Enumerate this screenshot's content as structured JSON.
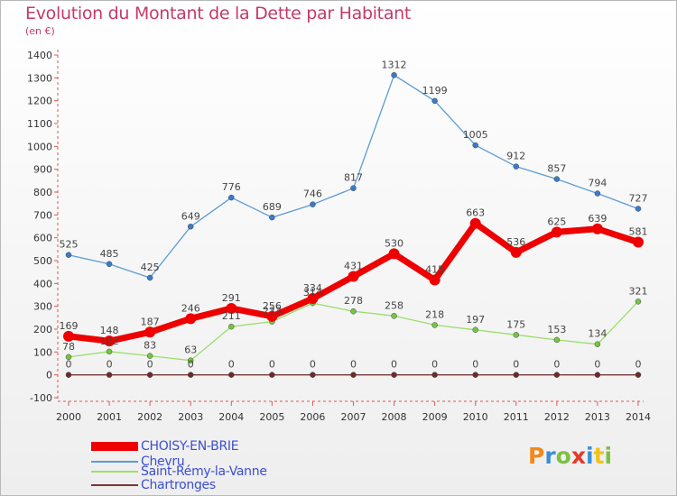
{
  "header": {
    "title": "Evolution du Montant de la Dette par Habitant",
    "subtitle": "(en €)"
  },
  "logo": {
    "text": "Proxiti",
    "colors": [
      "#f08a1c",
      "#3a8fd6",
      "#7cc142",
      "#e23a2a",
      "#3a8fd6",
      "#f0c21c",
      "#7cc142"
    ]
  },
  "chart_data": {
    "type": "line",
    "x": [
      "2000",
      "2001",
      "2002",
      "2003",
      "2004",
      "2005",
      "2006",
      "2007",
      "2008",
      "2009",
      "2010",
      "2011",
      "2012",
      "2013",
      "2014"
    ],
    "ylim": [
      -100,
      1400
    ],
    "yticks": [
      -100,
      0,
      100,
      200,
      300,
      400,
      500,
      600,
      700,
      800,
      900,
      1000,
      1100,
      1200,
      1300,
      1400
    ],
    "grid": false,
    "legend_position": "bottom-left",
    "series": [
      {
        "name": "Chevru",
        "color": "#5b9bd5",
        "values": [
          525,
          485,
          425,
          649,
          776,
          689,
          746,
          817,
          1312,
          1199,
          1005,
          912,
          857,
          794,
          727
        ],
        "labels": [
          "525",
          "485",
          "425",
          "649",
          "776",
          "689",
          "746",
          "817",
          "1312",
          "1199",
          "1005",
          "912",
          "857",
          "794",
          "727"
        ]
      },
      {
        "name": "Saint-Rémy-la-Vanne",
        "color": "#9bde6e",
        "values": [
          78,
          102,
          83,
          63,
          211,
          233,
          314,
          278,
          258,
          218,
          197,
          175,
          153,
          134,
          321
        ],
        "labels": [
          "78",
          "102",
          "83",
          "63",
          "211",
          "233",
          "314",
          "278",
          "258",
          "218",
          "197",
          "175",
          "153",
          "134",
          "321"
        ]
      },
      {
        "name": "Chartronges",
        "color": "#7a3535",
        "values": [
          0,
          0,
          0,
          0,
          0,
          0,
          0,
          0,
          0,
          0,
          0,
          0,
          0,
          0,
          0
        ],
        "labels": [
          "0",
          "0",
          "0",
          "0",
          "0",
          "0",
          "0",
          "0",
          "0",
          "0",
          "0",
          "0",
          "0",
          "0",
          "0"
        ]
      },
      {
        "name": "CHOISY-EN-BRIE",
        "color": "#ee0000",
        "values": [
          169,
          148,
          187,
          246,
          291,
          256,
          334,
          431,
          530,
          415,
          663,
          536,
          625,
          639,
          581
        ],
        "labels": [
          "169",
          "148",
          "187",
          "246",
          "291",
          "256",
          "334",
          "431",
          "530",
          "415",
          "663",
          "536",
          "625",
          "639",
          "581"
        ]
      }
    ],
    "legend": [
      "CHOISY-EN-BRIE",
      "Chevru",
      "Saint-Rémy-la-Vanne",
      "Chartronges"
    ]
  }
}
